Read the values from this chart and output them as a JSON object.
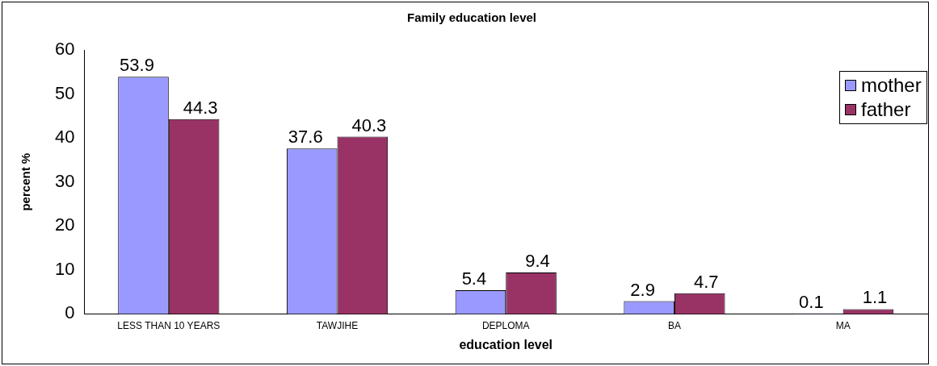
{
  "chart_data": {
    "type": "bar",
    "title": "Family education level",
    "xlabel": "education level",
    "ylabel": "percent %",
    "categories": [
      "LESS THAN 10 YEARS",
      "TAWJIHE",
      "DEPLOMA",
      "BA",
      "MA"
    ],
    "series": [
      {
        "name": "mother",
        "color": "#9999ff",
        "values": [
          53.9,
          37.6,
          5.4,
          2.9,
          0.1
        ]
      },
      {
        "name": "father",
        "color": "#993366",
        "values": [
          44.3,
          40.3,
          9.4,
          4.7,
          1.1
        ]
      }
    ],
    "ylim": [
      0,
      60
    ],
    "yticks": [
      0,
      10,
      20,
      30,
      40,
      50,
      60
    ],
    "grid": false,
    "legend": "top right",
    "data_labels": true
  }
}
